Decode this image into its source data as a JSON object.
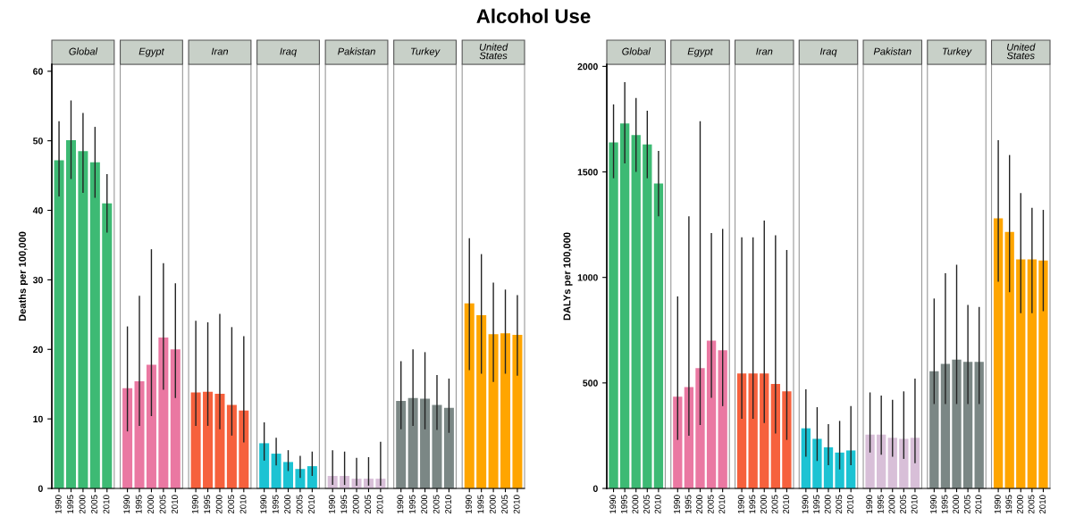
{
  "chart_data": [
    {
      "type": "bar",
      "title": "Alcohol Use",
      "ylabel": "Deaths per 100,000",
      "annotations": [
        "Global",
        "Egypt",
        "Iran",
        "Iraq",
        "Pakistan",
        "Turkey",
        "United\nStates"
      ],
      "categories": [
        "1990",
        "1995",
        "2000",
        "2005",
        "2010",
        "1990",
        "1995",
        "2000",
        "2005",
        "2010",
        "1990",
        "1995",
        "2000",
        "2005",
        "2010",
        "1990",
        "1995",
        "2000",
        "2005",
        "2010",
        "1990",
        "1995",
        "2000",
        "2005",
        "2010",
        "1990",
        "1995",
        "2000",
        "2005",
        "2010",
        "1990",
        "1995",
        "2000",
        "2005",
        "2010"
      ],
      "colors": [
        "#3dba74",
        "#3dba74",
        "#3dba74",
        "#3dba74",
        "#3dba74",
        "#ea78a2",
        "#ea78a2",
        "#ea78a2",
        "#ea78a2",
        "#ea78a2",
        "#f6613d",
        "#f6613d",
        "#f6613d",
        "#f6613d",
        "#f6613d",
        "#1cc3d3",
        "#1cc3d3",
        "#1cc3d3",
        "#1cc3d3",
        "#1cc3d3",
        "#d8bfd8",
        "#d8bfd8",
        "#d8bfd8",
        "#d8bfd8",
        "#d8bfd8",
        "#7b8785",
        "#7b8785",
        "#7b8785",
        "#7b8785",
        "#7b8785",
        "#ffa500",
        "#ffa500",
        "#ffa500",
        "#ffa500",
        "#ffa500"
      ],
      "values": [
        47.2,
        50.1,
        48.5,
        46.9,
        41.0,
        14.4,
        15.4,
        17.8,
        21.7,
        20.0,
        13.8,
        13.9,
        13.6,
        12.0,
        11.2,
        6.5,
        5.0,
        3.8,
        2.8,
        3.2,
        1.8,
        1.8,
        1.4,
        1.4,
        1.4,
        12.6,
        13.0,
        12.9,
        12.0,
        11.6,
        26.6,
        24.9,
        22.2,
        22.3,
        22.1
      ],
      "errors": [
        [
          42.0,
          52.8
        ],
        [
          44.5,
          55.8
        ],
        [
          42.5,
          54.0
        ],
        [
          41.8,
          52.0
        ],
        [
          36.8,
          45.2
        ],
        [
          8.2,
          23.3
        ],
        [
          9.0,
          27.7
        ],
        [
          10.4,
          34.4
        ],
        [
          14.2,
          32.4
        ],
        [
          13.0,
          29.5
        ],
        [
          9.0,
          24.1
        ],
        [
          9.0,
          23.9
        ],
        [
          8.5,
          25.1
        ],
        [
          7.6,
          23.2
        ],
        [
          6.6,
          21.9
        ],
        [
          4.0,
          9.5
        ],
        [
          3.3,
          7.3
        ],
        [
          2.5,
          5.5
        ],
        [
          1.5,
          4.7
        ],
        [
          1.8,
          5.3
        ],
        [
          0.5,
          5.5
        ],
        [
          0.5,
          5.3
        ],
        [
          0.4,
          4.4
        ],
        [
          0.4,
          4.5
        ],
        [
          0.4,
          6.7
        ],
        [
          8.5,
          18.3
        ],
        [
          9.0,
          20.0
        ],
        [
          8.5,
          19.6
        ],
        [
          8.4,
          16.3
        ],
        [
          8.0,
          15.8
        ],
        [
          17.0,
          36.0
        ],
        [
          16.5,
          33.7
        ],
        [
          15.3,
          29.6
        ],
        [
          16.5,
          28.6
        ],
        [
          16.2,
          27.8
        ]
      ],
      "ylim": [
        0,
        61
      ],
      "yticks": [
        0,
        10,
        20,
        30,
        40,
        50,
        60
      ]
    },
    {
      "type": "bar",
      "ylabel": "DALYs per 100,000",
      "annotations": [
        "Global",
        "Egypt",
        "Iran",
        "Iraq",
        "Pakistan",
        "Turkey",
        "United\nStates"
      ],
      "categories": [
        "1990",
        "1995",
        "2000",
        "2005",
        "2010",
        "1990",
        "1995",
        "2000",
        "2005",
        "2010",
        "1990",
        "1995",
        "2000",
        "2005",
        "2010",
        "1990",
        "1995",
        "2000",
        "2005",
        "2010",
        "1990",
        "1995",
        "2000",
        "2005",
        "2010",
        "1990",
        "1995",
        "2000",
        "2005",
        "2010",
        "1990",
        "1995",
        "2000",
        "2005",
        "2010"
      ],
      "colors": [
        "#3dba74",
        "#3dba74",
        "#3dba74",
        "#3dba74",
        "#3dba74",
        "#ea78a2",
        "#ea78a2",
        "#ea78a2",
        "#ea78a2",
        "#ea78a2",
        "#f6613d",
        "#f6613d",
        "#f6613d",
        "#f6613d",
        "#f6613d",
        "#1cc3d3",
        "#1cc3d3",
        "#1cc3d3",
        "#1cc3d3",
        "#1cc3d3",
        "#d8bfd8",
        "#d8bfd8",
        "#d8bfd8",
        "#d8bfd8",
        "#d8bfd8",
        "#7b8785",
        "#7b8785",
        "#7b8785",
        "#7b8785",
        "#7b8785",
        "#ffa500",
        "#ffa500",
        "#ffa500",
        "#ffa500",
        "#ffa500"
      ],
      "values": [
        1640,
        1730,
        1675,
        1630,
        1445,
        435,
        480,
        570,
        700,
        655,
        545,
        545,
        545,
        495,
        460,
        285,
        235,
        195,
        170,
        180,
        255,
        255,
        240,
        235,
        240,
        555,
        590,
        610,
        600,
        600,
        1280,
        1215,
        1085,
        1085,
        1080
      ],
      "errors": [
        [
          1470,
          1820
        ],
        [
          1540,
          1925
        ],
        [
          1500,
          1850
        ],
        [
          1470,
          1790
        ],
        [
          1290,
          1600
        ],
        [
          230,
          910
        ],
        [
          250,
          1290
        ],
        [
          300,
          1740
        ],
        [
          430,
          1210
        ],
        [
          390,
          1230
        ],
        [
          330,
          1190
        ],
        [
          330,
          1190
        ],
        [
          310,
          1270
        ],
        [
          260,
          1200
        ],
        [
          230,
          1130
        ],
        [
          150,
          470
        ],
        [
          130,
          385
        ],
        [
          110,
          305
        ],
        [
          90,
          320
        ],
        [
          110,
          390
        ],
        [
          170,
          455
        ],
        [
          160,
          440
        ],
        [
          150,
          420
        ],
        [
          140,
          460
        ],
        [
          120,
          520
        ],
        [
          400,
          900
        ],
        [
          400,
          1020
        ],
        [
          400,
          1060
        ],
        [
          400,
          870
        ],
        [
          400,
          860
        ],
        [
          980,
          1650
        ],
        [
          930,
          1580
        ],
        [
          830,
          1400
        ],
        [
          830,
          1330
        ],
        [
          840,
          1320
        ]
      ],
      "ylim": [
        0,
        2010
      ],
      "yticks": [
        0,
        500,
        1000,
        1500,
        2000
      ]
    }
  ]
}
